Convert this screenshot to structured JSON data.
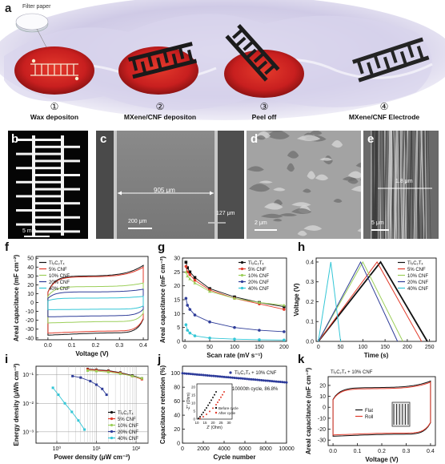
{
  "panels": {
    "a": {
      "letter": "a",
      "filter_label": "Filter paper",
      "steps": [
        {
          "num": "①",
          "label": "Wax depositon"
        },
        {
          "num": "②",
          "label": "MXene/CNF depositon"
        },
        {
          "num": "③",
          "label": "Peel off"
        },
        {
          "num": "④",
          "label": "MXene/CNF Electrode"
        }
      ]
    },
    "b": {
      "letter": "b",
      "scale": "5 mm"
    },
    "c": {
      "letter": "c",
      "width_label": "905 μm",
      "gap_label": "127 μm",
      "scale": "200 μm"
    },
    "d": {
      "letter": "d",
      "scale": "2 μm"
    },
    "e": {
      "letter": "e",
      "thickness_label": "1.8 μm",
      "scale": "5 μm"
    }
  },
  "colors": {
    "black": "#111111",
    "red": "#e23a2a",
    "lightgreen": "#9ccf5a",
    "darkblue": "#2f3d99",
    "cyan": "#33c6d6",
    "navy": "#2c3a9a"
  },
  "chart_data": [
    {
      "id": "f",
      "letter": "f",
      "type": "line",
      "xlabel": "Voltage (V)",
      "ylabel": "Areal capacitance (mF cm⁻²)",
      "xlim": [
        -0.05,
        0.42
      ],
      "ylim": [
        -42,
        52
      ],
      "xticks": [
        "0.0",
        "0.1",
        "0.2",
        "0.3",
        "0.4"
      ],
      "xtick_vals": [
        0.0,
        0.1,
        0.2,
        0.3,
        0.4
      ],
      "yticks": [
        "-40",
        "-30",
        "-20",
        "-10",
        "0",
        "10",
        "20",
        "30",
        "40",
        "50"
      ],
      "ytick_vals": [
        -40,
        -30,
        -20,
        -10,
        0,
        10,
        20,
        30,
        40,
        50
      ],
      "legend": [
        "Ti₃C₂Tₓ",
        "5% CNF",
        "10% CNF",
        "20% CNF",
        "40% CNF"
      ],
      "series": [
        {
          "name": "Ti₃C₂Tₓ",
          "color": "black",
          "loop": {
            "upper": 30,
            "lower": -32,
            "tail_up": 42,
            "tail_down": -38
          }
        },
        {
          "name": "5% CNF",
          "color": "red",
          "loop": {
            "upper": 29,
            "lower": -30,
            "tail_up": 40,
            "tail_down": -36
          }
        },
        {
          "name": "10% CNF",
          "color": "lightgreen",
          "loop": {
            "upper": 18,
            "lower": -20,
            "tail_up": 22,
            "tail_down": -24
          }
        },
        {
          "name": "20% CNF",
          "color": "darkblue",
          "loop": {
            "upper": 12,
            "lower": -14,
            "tail_up": 15,
            "tail_down": -16
          }
        },
        {
          "name": "40% CNF",
          "color": "cyan",
          "loop": {
            "upper": 5,
            "lower": -7,
            "tail_up": 7,
            "tail_down": -8
          }
        }
      ]
    },
    {
      "id": "g",
      "letter": "g",
      "type": "line",
      "xlabel": "Scan rate (mV s⁻¹)",
      "ylabel": "Areal capacitance (mF cm⁻²)",
      "xlim": [
        -5,
        205
      ],
      "ylim": [
        0,
        30
      ],
      "xticks": [
        "0",
        "50",
        "100",
        "150",
        "200"
      ],
      "xtick_vals": [
        0,
        50,
        100,
        150,
        200
      ],
      "yticks": [
        "0",
        "5",
        "10",
        "15",
        "20",
        "25",
        "30"
      ],
      "ytick_vals": [
        0,
        5,
        10,
        15,
        20,
        25,
        30
      ],
      "legend": [
        "Ti₃C₂Tₓ",
        "5% CNF",
        "10% CNF",
        "20% CNF",
        "40% CNF"
      ],
      "x": [
        2,
        5,
        10,
        20,
        50,
        100,
        150,
        200
      ],
      "series": [
        {
          "name": "Ti₃C₂Tₓ",
          "color": "black",
          "values": [
            28.5,
            26.5,
            25.0,
            23.0,
            19.0,
            16.0,
            14.0,
            12.5
          ]
        },
        {
          "name": "5% CNF",
          "color": "red",
          "values": [
            27.0,
            25.0,
            24.0,
            22.0,
            18.5,
            15.5,
            13.5,
            11.5
          ]
        },
        {
          "name": "10% CNF",
          "color": "lightgreen",
          "values": [
            25.0,
            23.5,
            22.5,
            21.0,
            18.0,
            15.5,
            14.0,
            13.0
          ]
        },
        {
          "name": "20% CNF",
          "color": "darkblue",
          "values": [
            15.5,
            13.0,
            11.5,
            9.5,
            7.0,
            5.0,
            4.0,
            3.5
          ]
        },
        {
          "name": "40% CNF",
          "color": "cyan",
          "values": [
            6.0,
            4.0,
            3.0,
            2.0,
            1.2,
            0.8,
            0.6,
            0.5
          ]
        }
      ]
    },
    {
      "id": "h",
      "letter": "h",
      "type": "line",
      "xlabel": "Time (s)",
      "ylabel": "Voltage (V)",
      "xlim": [
        -5,
        265
      ],
      "ylim": [
        0,
        0.42
      ],
      "xticks": [
        "0",
        "50",
        "100",
        "150",
        "200",
        "250"
      ],
      "xtick_vals": [
        0,
        50,
        100,
        150,
        200,
        250
      ],
      "yticks": [
        "0.0",
        "0.1",
        "0.2",
        "0.3",
        "0.4"
      ],
      "ytick_vals": [
        0.0,
        0.1,
        0.2,
        0.3,
        0.4
      ],
      "legend": [
        "Ti₃C₂Tₓ",
        "5% CNF",
        "10% CNF",
        "20% CNF",
        "40% CNF"
      ],
      "series": [
        {
          "name": "Ti₃C₂Tₓ",
          "color": "black",
          "peak_t": 140,
          "end_t": 245
        },
        {
          "name": "5% CNF",
          "color": "red",
          "peak_t": 132,
          "end_t": 232
        },
        {
          "name": "10% CNF",
          "color": "lightgreen",
          "peak_t": 100,
          "end_t": 190
        },
        {
          "name": "20% CNF",
          "color": "darkblue",
          "peak_t": 95,
          "end_t": 178
        },
        {
          "name": "40% CNF",
          "color": "cyan",
          "peak_t": 28,
          "end_t": 50
        }
      ]
    },
    {
      "id": "i",
      "letter": "i",
      "type": "line",
      "xlabel": "Power density (μW cm⁻²)",
      "ylabel": "Energy density (μWh cm⁻²)",
      "xscale": "log",
      "yscale": "log",
      "xlim": [
        0.3,
        200
      ],
      "ylim": [
        0.0004,
        0.2
      ],
      "xticks": [
        "10⁰",
        "10¹",
        "10²"
      ],
      "xtick_vals": [
        1,
        10,
        100
      ],
      "yticks": [
        "10⁻³",
        "10⁻²",
        "10⁻¹"
      ],
      "ytick_vals": [
        0.001,
        0.01,
        0.1
      ],
      "legend": [
        "Ti₃C₂Tₓ",
        "5% CNF",
        "10% CNF",
        "20% CNF",
        "40% CNF"
      ],
      "series": [
        {
          "name": "Ti₃C₂Tₓ",
          "color": "black",
          "x": [
            6,
            10,
            20,
            40,
            80,
            140
          ],
          "y": [
            0.16,
            0.15,
            0.14,
            0.12,
            0.095,
            0.075
          ]
        },
        {
          "name": "5% CNF",
          "color": "red",
          "x": [
            6,
            10,
            20,
            40,
            80,
            140
          ],
          "y": [
            0.155,
            0.145,
            0.135,
            0.115,
            0.09,
            0.07
          ]
        },
        {
          "name": "10% CNF",
          "color": "lightgreen",
          "x": [
            6,
            10,
            20,
            40,
            80,
            140
          ],
          "y": [
            0.14,
            0.135,
            0.125,
            0.11,
            0.09,
            0.075
          ]
        },
        {
          "name": "20% CNF",
          "color": "darkblue",
          "x": [
            2.5,
            4,
            7,
            10,
            14,
            18
          ],
          "y": [
            0.09,
            0.08,
            0.06,
            0.045,
            0.032,
            0.02
          ]
        },
        {
          "name": "40% CNF",
          "color": "cyan",
          "x": [
            0.8,
            1.1,
            1.6,
            2.4,
            3.5,
            5.0
          ],
          "y": [
            0.035,
            0.02,
            0.01,
            0.005,
            0.0025,
            0.0012
          ]
        }
      ]
    },
    {
      "id": "j",
      "letter": "j",
      "type": "scatter",
      "xlabel": "Cycle number",
      "ylabel": "Capacitance retention (%)",
      "xlim": [
        0,
        10000
      ],
      "ylim": [
        0,
        110
      ],
      "xticks": [
        "0",
        "2000",
        "4000",
        "6000",
        "8000",
        "10000"
      ],
      "xtick_vals": [
        0,
        2000,
        4000,
        6000,
        8000,
        10000
      ],
      "yticks": [
        "0",
        "20",
        "40",
        "60",
        "80",
        "100"
      ],
      "ytick_vals": [
        0,
        20,
        40,
        60,
        80,
        100
      ],
      "legend": [
        "Ti₃C₂Tₓ + 10% CNF"
      ],
      "annotation": "10000th cycle, 86.8%",
      "series": [
        {
          "name": "Ti₃C₂Tₓ + 10% CNF",
          "color": "navy",
          "start": 100,
          "end": 86.8
        }
      ],
      "inset": {
        "xlabel": "Z' (Ohm)",
        "ylabel": "-Z'' (Ohm)",
        "xticks": [
          "10",
          "15",
          "20",
          "25",
          "30"
        ],
        "xtick_vals": [
          10,
          15,
          20,
          25,
          30
        ],
        "yticks": [
          "0",
          "5",
          "10",
          "15",
          "20"
        ],
        "ytick_vals": [
          0,
          5,
          10,
          15,
          20
        ],
        "xlim": [
          10,
          32
        ],
        "ylim": [
          0,
          22
        ],
        "legend": [
          "Before cycle",
          "After cycle"
        ],
        "series": [
          {
            "name": "Before cycle",
            "color": "black",
            "x": [
              11,
              12,
              13,
              14,
              15,
              16,
              17,
              18,
              19,
              20,
              21,
              22
            ],
            "y": [
              0.5,
              1.5,
              2.8,
              4.2,
              5.6,
              7.0,
              8.6,
              10.2,
              11.8,
              13.5,
              15.2,
              17.0
            ]
          },
          {
            "name": "After cycle",
            "color": "red",
            "x": [
              12,
              14,
              16,
              18,
              20,
              22,
              23,
              24,
              25,
              26,
              27
            ],
            "y": [
              0.4,
              1.5,
              3.0,
              4.8,
              6.8,
              9.0,
              10.5,
              12.0,
              13.6,
              15.2,
              17.0
            ]
          }
        ]
      }
    },
    {
      "id": "k",
      "letter": "k",
      "type": "line",
      "xlabel": "Voltage (V)",
      "ylabel": "Areal capacitance (mF cm⁻²)",
      "xlim": [
        -0.02,
        0.42
      ],
      "ylim": [
        -35,
        28
      ],
      "xticks": [
        "0.0",
        "0.1",
        "0.2",
        "0.3",
        "0.4"
      ],
      "xtick_vals": [
        0.0,
        0.1,
        0.2,
        0.3,
        0.4
      ],
      "yticks": [
        "-30",
        "-20",
        "-10",
        "0",
        "10",
        "20"
      ],
      "ytick_vals": [
        -30,
        -20,
        -10,
        0,
        10,
        20
      ],
      "legend_title": "Ti₃C₂Tₓ + 10% CNF",
      "legend": [
        "Flat",
        "Roll"
      ],
      "series": [
        {
          "name": "Flat",
          "color": "black",
          "loop": {
            "upper": 18,
            "lower": -23,
            "tail_up": 24,
            "tail_down": -28
          }
        },
        {
          "name": "Roll",
          "color": "red",
          "loop": {
            "upper": 17,
            "lower": -22,
            "tail_up": 23,
            "tail_down": -27
          }
        }
      ]
    }
  ]
}
